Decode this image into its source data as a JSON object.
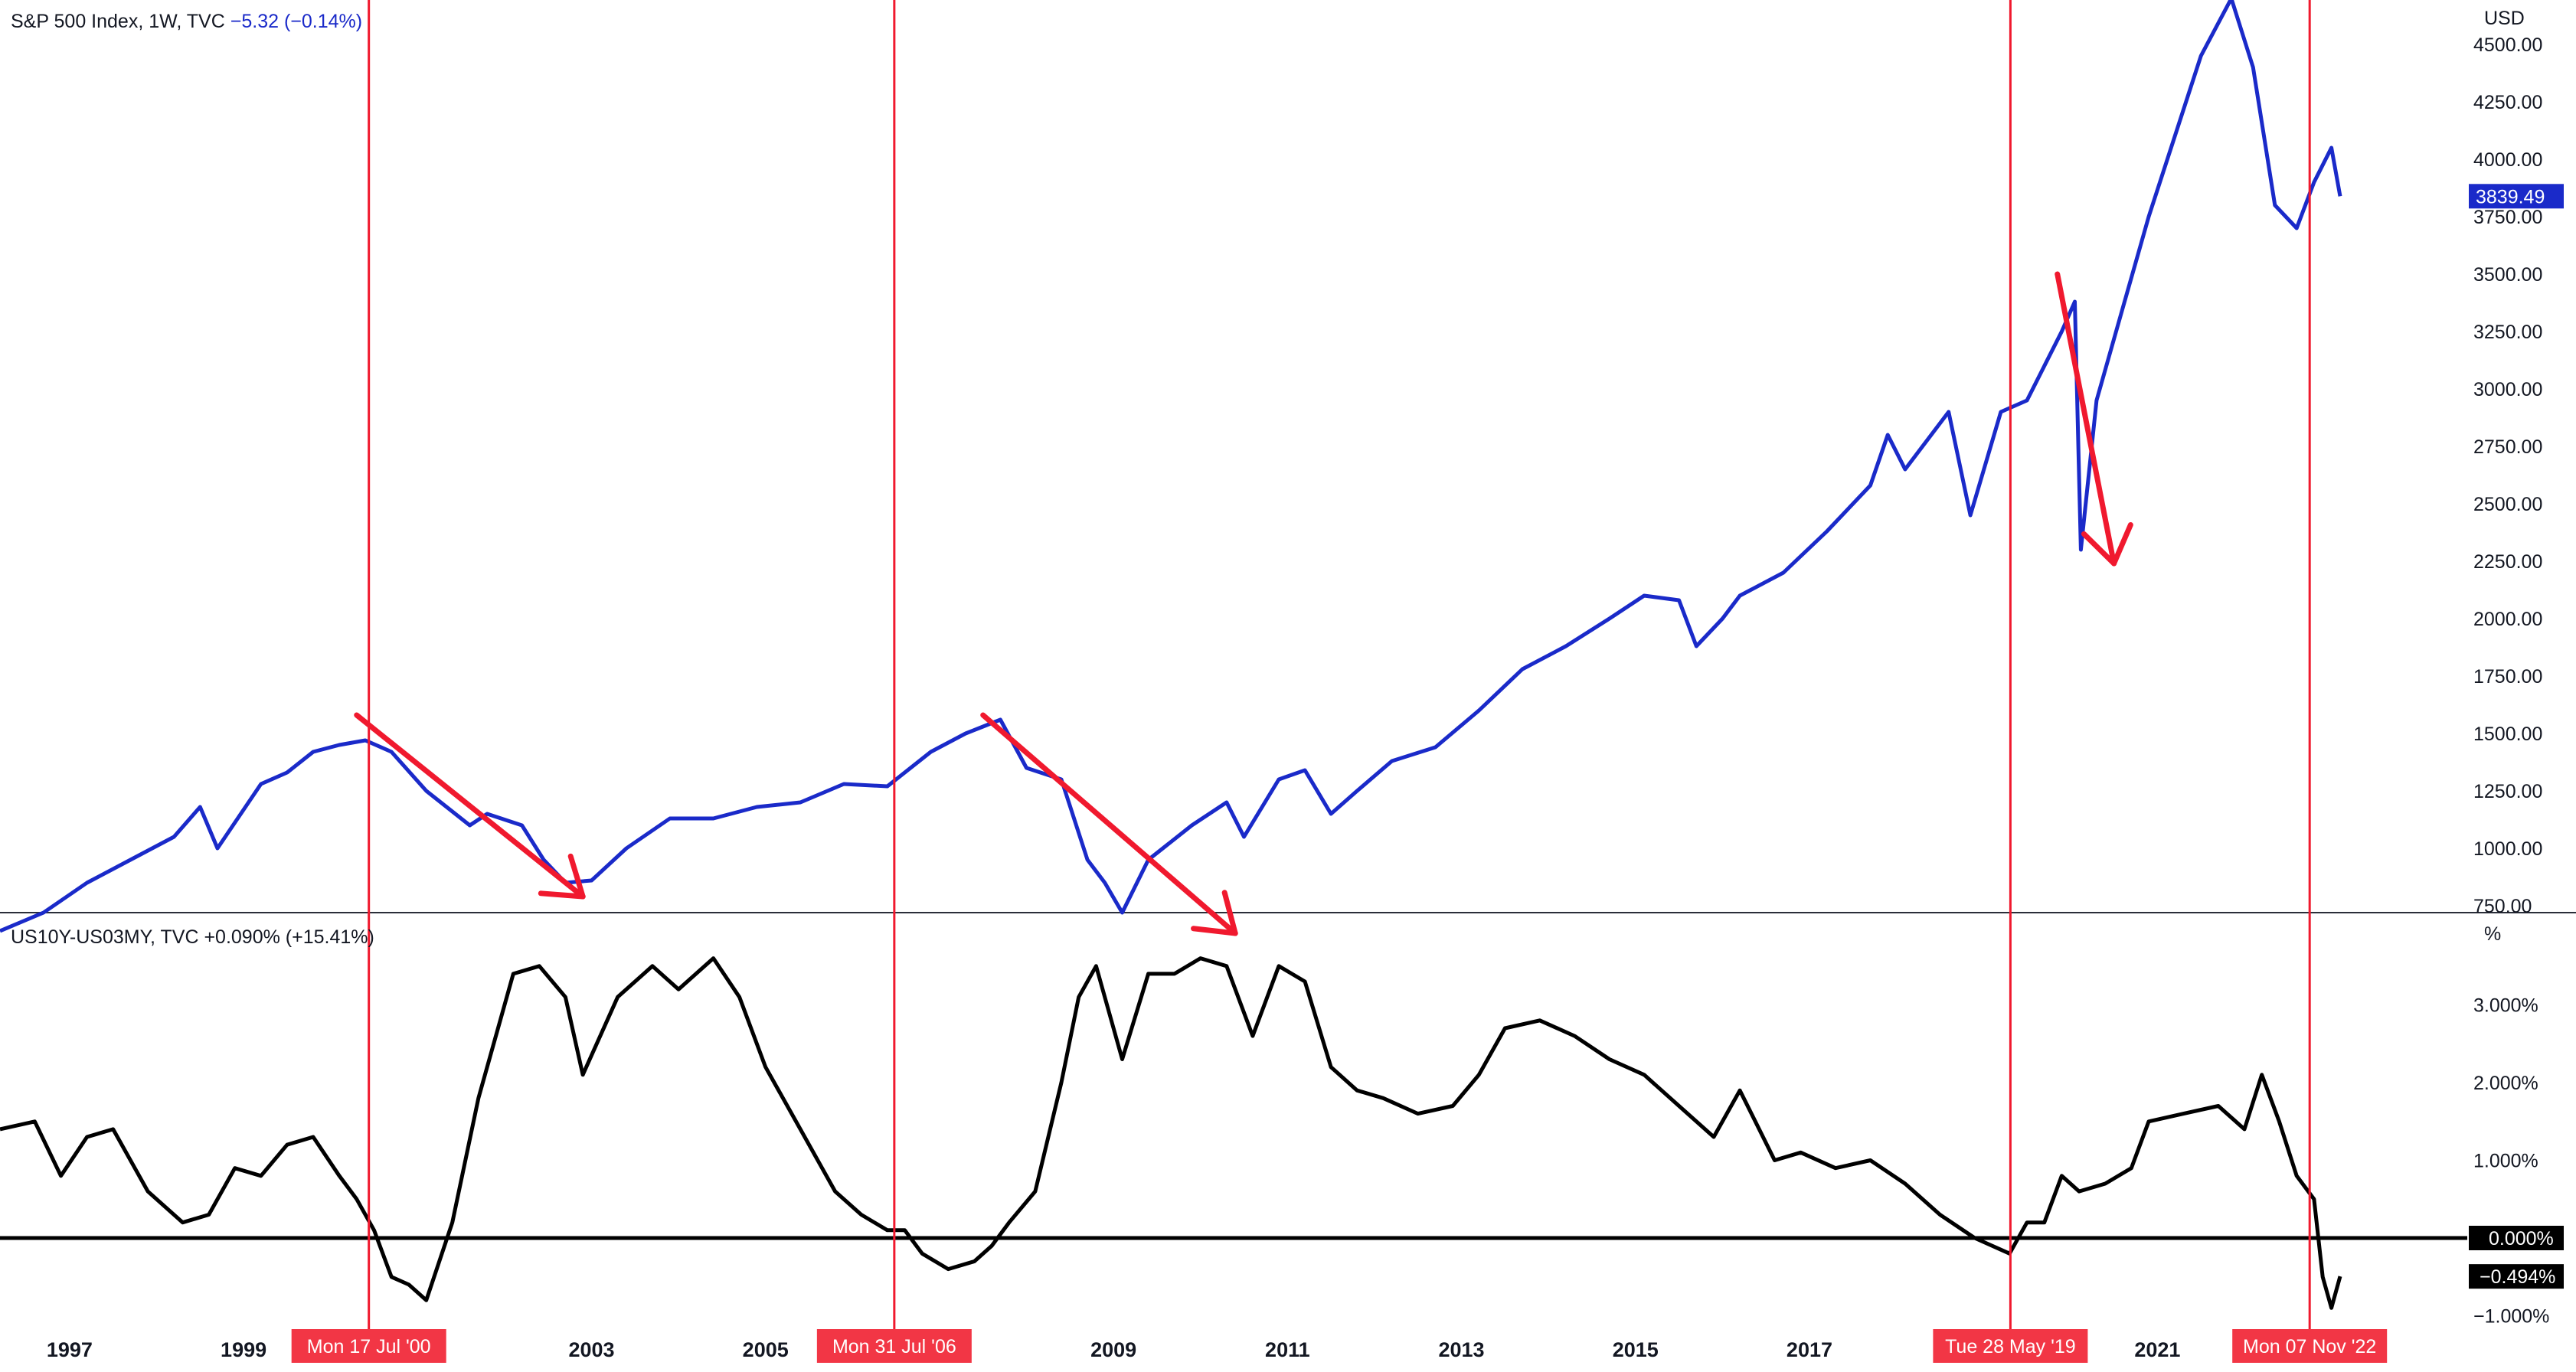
{
  "chart_data": [
    {
      "type": "line",
      "legend": {
        "symbol": "S&P 500 Index, 1W, TVC",
        "change": "−5.32 (−0.14%)"
      },
      "unit": "USD",
      "ylim": [
        600,
        4800
      ],
      "xlim": [
        1996.3,
        2024.6
      ],
      "y_ticks": [
        750,
        1000,
        1250,
        1500,
        1750,
        2000,
        2250,
        2500,
        2750,
        3000,
        3250,
        3500,
        3750,
        4000,
        4250,
        4500
      ],
      "y_tick_labels": [
        "750.00",
        "1000.00",
        "1250.00",
        "1500.00",
        "1750.00",
        "2000.00",
        "2250.00",
        "2500.00",
        "2750.00",
        "3000.00",
        "3250.00",
        "3500.00",
        "3750.00",
        "4000.00",
        "4250.00",
        "4500.00"
      ],
      "last_value_label": "3839.49",
      "color": "#1a2ac9",
      "series": [
        {
          "x": [
            1996.3,
            1996.8,
            1997.3,
            1997.8,
            1998.3,
            1998.6,
            1998.8,
            1999.3,
            1999.6,
            1999.9,
            2000.2,
            2000.5,
            2000.8,
            2001.2,
            2001.7,
            2001.9,
            2002.3,
            2002.55,
            2002.8,
            2003.1,
            2003.5,
            2004.0,
            2004.5,
            2005.0,
            2005.5,
            2006.0,
            2006.5,
            2007.0,
            2007.4,
            2007.6,
            2007.8,
            2008.1,
            2008.5,
            2008.8,
            2009.0,
            2009.2,
            2009.5,
            2010.0,
            2010.4,
            2010.6,
            2011.0,
            2011.3,
            2011.6,
            2011.9,
            2012.3,
            2012.8,
            2013.3,
            2013.8,
            2014.3,
            2014.8,
            2015.2,
            2015.6,
            2015.8,
            2016.1,
            2016.3,
            2016.8,
            2017.3,
            2017.8,
            2018.0,
            2018.2,
            2018.7,
            2018.95,
            2019.3,
            2019.6,
            2020.0,
            2020.15,
            2020.22,
            2020.4,
            2020.7,
            2021.0,
            2021.3,
            2021.6,
            2021.95,
            2022.2,
            2022.45,
            2022.7,
            2022.9,
            2023.1,
            2023.2
          ],
          "y": [
            640,
            720,
            850,
            950,
            1050,
            1180,
            1000,
            1280,
            1330,
            1420,
            1450,
            1470,
            1420,
            1250,
            1100,
            1150,
            1100,
            950,
            850,
            860,
            1000,
            1130,
            1130,
            1180,
            1200,
            1280,
            1270,
            1420,
            1500,
            1530,
            1560,
            1350,
            1300,
            950,
            850,
            720,
            950,
            1100,
            1200,
            1050,
            1300,
            1340,
            1150,
            1250,
            1380,
            1440,
            1600,
            1780,
            1880,
            2000,
            2100,
            2080,
            1880,
            2000,
            2100,
            2200,
            2380,
            2580,
            2800,
            2650,
            2900,
            2450,
            2900,
            2950,
            3250,
            3380,
            2300,
            2950,
            3350,
            3750,
            4100,
            4450,
            4700,
            4400,
            3800,
            3700,
            3900,
            4050,
            3839
          ]
        }
      ],
      "annotations": {
        "arrows": [
          {
            "x0": 2000.4,
            "y0": 1580,
            "x1": 2003.0,
            "y1": 790
          },
          {
            "x0": 2007.6,
            "y0": 1580,
            "x1": 2010.5,
            "y1": 630
          },
          {
            "x0": 2019.95,
            "y0": 3500,
            "x1": 2020.6,
            "y1": 2240
          }
        ]
      }
    },
    {
      "type": "line",
      "legend": {
        "symbol": "US10Y-US03MY, TVC",
        "change": "+0.090% (+15.41%)"
      },
      "unit": "%",
      "ylim": [
        -1.1,
        3.85
      ],
      "xlim": [
        1996.3,
        2024.6
      ],
      "y_ticks": [
        -1,
        1,
        2,
        3
      ],
      "y_tick_labels": [
        "−1.000%",
        "1.000%",
        "2.000%",
        "3.000%"
      ],
      "zero_label": "0.000%",
      "last_value_label": "−0.494%",
      "reference_line": 0,
      "color": "#000000",
      "series": [
        {
          "x": [
            1996.3,
            1996.7,
            1997.0,
            1997.3,
            1997.6,
            1998.0,
            1998.4,
            1998.7,
            1999.0,
            1999.3,
            1999.6,
            1999.9,
            2000.2,
            2000.4,
            2000.6,
            2000.8,
            2001.0,
            2001.2,
            2001.5,
            2001.8,
            2002.2,
            2002.5,
            2002.8,
            2003.0,
            2003.4,
            2003.8,
            2004.1,
            2004.5,
            2004.8,
            2005.1,
            2005.5,
            2005.9,
            2006.2,
            2006.5,
            2006.7,
            2006.9,
            2007.2,
            2007.5,
            2007.7,
            2007.9,
            2008.2,
            2008.5,
            2008.7,
            2008.9,
            2009.2,
            2009.5,
            2009.8,
            2010.1,
            2010.4,
            2010.7,
            2011.0,
            2011.3,
            2011.6,
            2011.9,
            2012.2,
            2012.6,
            2013.0,
            2013.3,
            2013.6,
            2014.0,
            2014.4,
            2014.8,
            2015.2,
            2015.6,
            2016.0,
            2016.3,
            2016.7,
            2017.0,
            2017.4,
            2017.8,
            2018.2,
            2018.6,
            2019.0,
            2019.4,
            2019.6,
            2019.8,
            2020.0,
            2020.2,
            2020.5,
            2020.8,
            2021.0,
            2021.4,
            2021.8,
            2022.1,
            2022.3,
            2022.5,
            2022.7,
            2022.9,
            2023.0,
            2023.1,
            2023.2
          ],
          "y": [
            1.4,
            1.5,
            0.8,
            1.3,
            1.4,
            0.6,
            0.2,
            0.3,
            0.9,
            0.8,
            1.2,
            1.3,
            0.8,
            0.5,
            0.1,
            -0.5,
            -0.6,
            -0.8,
            0.2,
            1.8,
            3.4,
            3.5,
            3.1,
            2.1,
            3.1,
            3.5,
            3.2,
            3.6,
            3.1,
            2.2,
            1.4,
            0.6,
            0.3,
            0.1,
            0.1,
            -0.2,
            -0.4,
            -0.3,
            -0.1,
            0.2,
            0.6,
            2.0,
            3.1,
            3.5,
            2.3,
            3.4,
            3.4,
            3.6,
            3.5,
            2.6,
            3.5,
            3.3,
            2.2,
            1.9,
            1.8,
            1.6,
            1.7,
            2.1,
            2.7,
            2.8,
            2.6,
            2.3,
            2.1,
            1.7,
            1.3,
            1.9,
            1.0,
            1.1,
            0.9,
            1.0,
            0.7,
            0.3,
            0.0,
            -0.2,
            0.2,
            0.2,
            0.8,
            0.6,
            0.7,
            0.9,
            1.5,
            1.6,
            1.7,
            1.4,
            2.1,
            1.5,
            0.8,
            0.5,
            -0.5,
            -0.9,
            -0.494
          ]
        }
      ]
    }
  ],
  "x_axis": {
    "tick_years": [
      1997,
      1999,
      2003,
      2005,
      2009,
      2011,
      2013,
      2015,
      2017,
      2021
    ],
    "tick_labels": [
      "1997",
      "1999",
      "2003",
      "2005",
      "2009",
      "2011",
      "2013",
      "2015",
      "2017",
      "2021"
    ]
  },
  "vertical_markers": [
    {
      "x": 2000.54,
      "label": "Mon 17 Jul '00"
    },
    {
      "x": 2006.58,
      "label": "Mon 31 Jul '06"
    },
    {
      "x": 2019.41,
      "label": "Tue 28 May '19"
    },
    {
      "x": 2022.85,
      "label": "Mon 07 Nov '22"
    }
  ],
  "colors": {
    "sp500_line": "#1a2ac9",
    "spread_line": "#000000",
    "markers": "#f0192e",
    "annotation_arrows": "#f0192e",
    "marker_label_bg": "#f23645"
  }
}
